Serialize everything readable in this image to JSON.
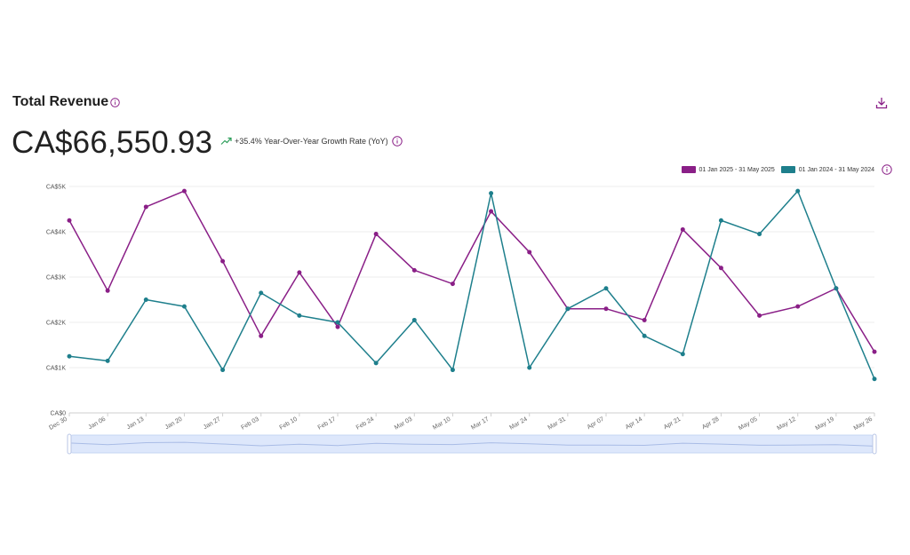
{
  "header": {
    "title": "Total Revenue",
    "total_value": "CA$66,550.93",
    "yoy_text": "+35.4% Year-Over-Year Growth Rate (YoY)"
  },
  "legend": {
    "items": [
      {
        "label": "01 Jan 2025 - 31 May 2025",
        "color": "#8a1f87"
      },
      {
        "label": "01 Jan 2024 - 31 May 2024",
        "color": "#1e7f8c"
      }
    ]
  },
  "icons": {
    "info": "info-circle-icon",
    "download": "download-icon",
    "trend": "trend-up-icon"
  },
  "colors": {
    "series_2025": "#8a1f87",
    "series_2024": "#1e7f8c",
    "trend_up": "#2e9e5b",
    "navigator_fill": "#dde7fb"
  },
  "chart_data": {
    "type": "line",
    "categories": [
      "Dec 30",
      "Jan 06",
      "Jan 13",
      "Jan 20",
      "Jan 27",
      "Feb 03",
      "Feb 10",
      "Feb 17",
      "Feb 24",
      "Mar 03",
      "Mar 10",
      "Mar 17",
      "Mar 24",
      "Mar 31",
      "Apr 07",
      "Apr 14",
      "Apr 21",
      "Apr 28",
      "May 05",
      "May 12",
      "May 19",
      "May 26"
    ],
    "y_tick_labels": [
      "CA$0",
      "CA$1K",
      "CA$2K",
      "CA$3K",
      "CA$4K",
      "CA$5K"
    ],
    "ylim": [
      0,
      5000
    ],
    "series": [
      {
        "name": "01 Jan 2025 - 31 May 2025",
        "color": "#8a1f87",
        "values": [
          4250,
          2700,
          4550,
          4900,
          3350,
          1700,
          3100,
          1900,
          3950,
          3150,
          2850,
          4450,
          3550,
          2300,
          2300,
          2050,
          4050,
          3200,
          2150,
          2350,
          2750,
          1350
        ]
      },
      {
        "name": "01 Jan 2024 - 31 May 2024",
        "color": "#1e7f8c",
        "values": [
          1250,
          1150,
          2500,
          2350,
          950,
          2650,
          2150,
          2000,
          1100,
          2050,
          950,
          4850,
          1000,
          2300,
          2750,
          1700,
          1300,
          4250,
          3950,
          4900,
          2750,
          750
        ]
      }
    ],
    "grid": true,
    "legend_position": "top-right",
    "navigator": true
  }
}
